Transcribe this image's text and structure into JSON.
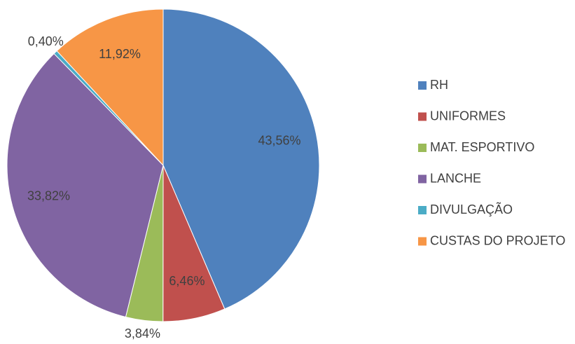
{
  "chart_data": {
    "type": "pie",
    "categories": [
      "RH",
      "UNIFORMES",
      "MAT. ESPORTIVO",
      "LANCHE",
      "DIVULGAÇÃO",
      "CUSTAS DO PROJETO"
    ],
    "values": [
      43.56,
      6.46,
      3.84,
      33.82,
      0.4,
      11.92
    ],
    "value_labels": [
      "43,56%",
      "6,46%",
      "3,84%",
      "33,82%",
      "0,40%",
      "11,92%"
    ],
    "colors": [
      "#4f81bd",
      "#c0504d",
      "#9bbb59",
      "#8064a2",
      "#4bacc6",
      "#f79646"
    ],
    "legend": "right"
  }
}
